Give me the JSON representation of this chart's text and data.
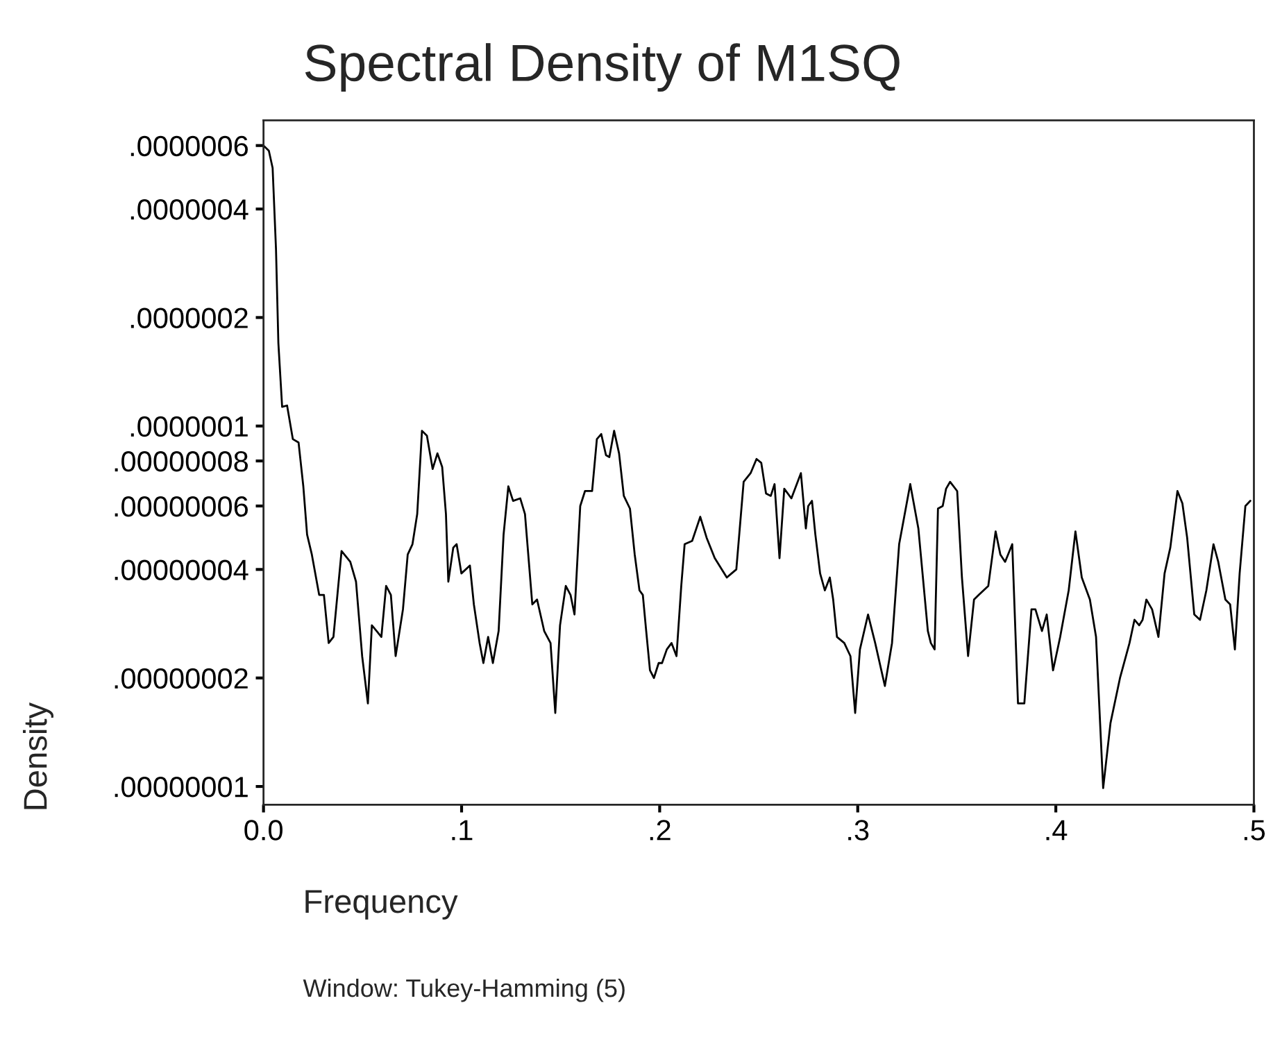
{
  "chart_data": {
    "type": "line",
    "title": "Spectral Density of M1SQ",
    "xlabel": "Frequency",
    "ylabel": "Density",
    "annotations": [
      "Window: Tukey-Hamming (5)"
    ],
    "x": [
      0.0,
      0.0027,
      0.0046,
      0.0063,
      0.0075,
      0.0094,
      0.0119,
      0.0148,
      0.0177,
      0.0201,
      0.022,
      0.0244,
      0.0281,
      0.0305,
      0.0329,
      0.0353,
      0.0394,
      0.0438,
      0.0467,
      0.0498,
      0.0527,
      0.0547,
      0.0571,
      0.0595,
      0.0619,
      0.0643,
      0.0667,
      0.0704,
      0.0728,
      0.0752,
      0.0776,
      0.08,
      0.0825,
      0.0854,
      0.0878,
      0.0902,
      0.0921,
      0.0933,
      0.0958,
      0.0975,
      0.0999,
      0.1042,
      0.1062,
      0.1091,
      0.111,
      0.1134,
      0.1158,
      0.1187,
      0.1212,
      0.1236,
      0.126,
      0.1296,
      0.132,
      0.1357,
      0.1381,
      0.1417,
      0.1449,
      0.1473,
      0.1497,
      0.1526,
      0.155,
      0.157,
      0.1599,
      0.1623,
      0.1659,
      0.1683,
      0.1705,
      0.1729,
      0.1746,
      0.177,
      0.1795,
      0.1819,
      0.185,
      0.1874,
      0.1898,
      0.1915,
      0.1932,
      0.1951,
      0.1971,
      0.1995,
      0.2012,
      0.2036,
      0.206,
      0.2085,
      0.2109,
      0.2126,
      0.2164,
      0.2205,
      0.2237,
      0.2278,
      0.2339,
      0.2363,
      0.2387,
      0.2424,
      0.2459,
      0.2489,
      0.2513,
      0.2537,
      0.2561,
      0.258,
      0.2605,
      0.2629,
      0.2665,
      0.2713,
      0.2738,
      0.275,
      0.2769,
      0.2786,
      0.281,
      0.2834,
      0.2859,
      0.2876,
      0.2895,
      0.2932,
      0.2963,
      0.2987,
      0.3011,
      0.3052,
      0.3088,
      0.3137,
      0.3173,
      0.3209,
      0.3265,
      0.3306,
      0.3354,
      0.3369,
      0.3388,
      0.3405,
      0.3429,
      0.3446,
      0.3466,
      0.3502,
      0.3526,
      0.3557,
      0.3587,
      0.3611,
      0.3659,
      0.3696,
      0.372,
      0.3744,
      0.378,
      0.3809,
      0.3841,
      0.3877,
      0.3897,
      0.393,
      0.3954,
      0.3986,
      0.4022,
      0.4065,
      0.4099,
      0.4131,
      0.4172,
      0.4203,
      0.4239,
      0.4276,
      0.4324,
      0.4372,
      0.4397,
      0.4421,
      0.4438,
      0.4457,
      0.4486,
      0.4518,
      0.4549,
      0.4578,
      0.4614,
      0.4639,
      0.4663,
      0.4699,
      0.4728,
      0.476,
      0.4796,
      0.482,
      0.4856,
      0.488,
      0.4904,
      0.4928,
      0.4957,
      0.4982
    ],
    "series": [
      {
        "color": "#000000",
        "values": [
          6e-07,
          5.8e-07,
          5.2e-07,
          3.1e-07,
          1.7e-07,
          1.13e-07,
          1.14e-07,
          9.2e-08,
          9e-08,
          6.8e-08,
          5e-08,
          4.4e-08,
          3.4e-08,
          3.4e-08,
          2.5e-08,
          2.6e-08,
          4.5e-08,
          4.2e-08,
          3.7e-08,
          2.3e-08,
          1.7e-08,
          2.8e-08,
          2.7e-08,
          2.6e-08,
          3.6e-08,
          3.4e-08,
          2.3e-08,
          3.1e-08,
          4.4e-08,
          4.7e-08,
          5.7e-08,
          9.7e-08,
          9.4e-08,
          7.6e-08,
          8.4e-08,
          7.7e-08,
          5.7e-08,
          3.7e-08,
          4.6e-08,
          4.7e-08,
          3.9e-08,
          4.1e-08,
          3.2e-08,
          2.5e-08,
          2.2e-08,
          2.6e-08,
          2.2e-08,
          2.7e-08,
          5e-08,
          6.8e-08,
          6.2e-08,
          6.3e-08,
          5.7e-08,
          3.2e-08,
          3.3e-08,
          2.7e-08,
          2.5e-08,
          1.6e-08,
          2.8e-08,
          3.6e-08,
          3.4e-08,
          3e-08,
          6e-08,
          6.6e-08,
          6.6e-08,
          9.2e-08,
          9.5e-08,
          8.3e-08,
          8.2e-08,
          9.7e-08,
          8.4e-08,
          6.4e-08,
          5.9e-08,
          4.4e-08,
          3.5e-08,
          3.4e-08,
          2.7e-08,
          2.1e-08,
          2e-08,
          2.2e-08,
          2.2e-08,
          2.4e-08,
          2.5e-08,
          2.3e-08,
          3.6e-08,
          4.7e-08,
          4.8e-08,
          5.6e-08,
          4.9e-08,
          4.3e-08,
          3.8e-08,
          3.9e-08,
          4e-08,
          7e-08,
          7.4e-08,
          8.1e-08,
          7.9e-08,
          6.5e-08,
          6.4e-08,
          6.9e-08,
          4.3e-08,
          6.7e-08,
          6.3e-08,
          7.4e-08,
          5.2e-08,
          6e-08,
          6.2e-08,
          5e-08,
          3.9e-08,
          3.5e-08,
          3.8e-08,
          3.3e-08,
          2.6e-08,
          2.5e-08,
          2.3e-08,
          1.6e-08,
          2.4e-08,
          3e-08,
          2.5e-08,
          1.9e-08,
          2.5e-08,
          4.7e-08,
          6.9e-08,
          5.2e-08,
          2.7e-08,
          2.5e-08,
          2.4e-08,
          5.9e-08,
          6e-08,
          6.7e-08,
          7e-08,
          6.6e-08,
          3.8e-08,
          2.3e-08,
          3.3e-08,
          3.4e-08,
          3.6e-08,
          5.1e-08,
          4.4e-08,
          4.2e-08,
          4.7e-08,
          1.7e-08,
          1.7e-08,
          3.1e-08,
          3.1e-08,
          2.7e-08,
          3e-08,
          2.1e-08,
          2.6e-08,
          3.5e-08,
          5.1e-08,
          3.8e-08,
          3.3e-08,
          2.6e-08,
          9.9e-09,
          1.5e-08,
          2e-08,
          2.5e-08,
          2.9e-08,
          2.8e-08,
          2.9e-08,
          3.3e-08,
          3.1e-08,
          2.6e-08,
          3.9e-08,
          4.6e-08,
          6.6e-08,
          6.1e-08,
          4.9e-08,
          3e-08,
          2.9e-08,
          3.5e-08,
          4.7e-08,
          4.2e-08,
          3.3e-08,
          3.2e-08,
          2.4e-08,
          3.9e-08,
          6e-08,
          6.2e-08
        ]
      }
    ],
    "xlim": [
      0,
      0.5
    ],
    "ylim": [
      8.9e-09,
      7.05e-07
    ],
    "log": "y",
    "xticks": [
      {
        "value": 0,
        "label": "0.0"
      },
      {
        "value": 0.1,
        "label": ".1"
      },
      {
        "value": 0.2,
        "label": ".2"
      },
      {
        "value": 0.3,
        "label": ".3"
      },
      {
        "value": 0.4,
        "label": ".4"
      },
      {
        "value": 0.5,
        "label": ".5"
      }
    ],
    "yticks": [
      {
        "value": 1e-08,
        "label": ".00000001"
      },
      {
        "value": 2e-08,
        "label": ".00000002"
      },
      {
        "value": 4e-08,
        "label": ".00000004"
      },
      {
        "value": 6e-08,
        "label": ".00000006"
      },
      {
        "value": 8e-08,
        "label": ".00000008"
      },
      {
        "value": 1e-07,
        "label": ".0000001"
      },
      {
        "value": 2e-07,
        "label": ".0000002"
      },
      {
        "value": 4e-07,
        "label": ".0000004"
      },
      {
        "value": 6e-07,
        "label": ".0000006"
      }
    ]
  }
}
